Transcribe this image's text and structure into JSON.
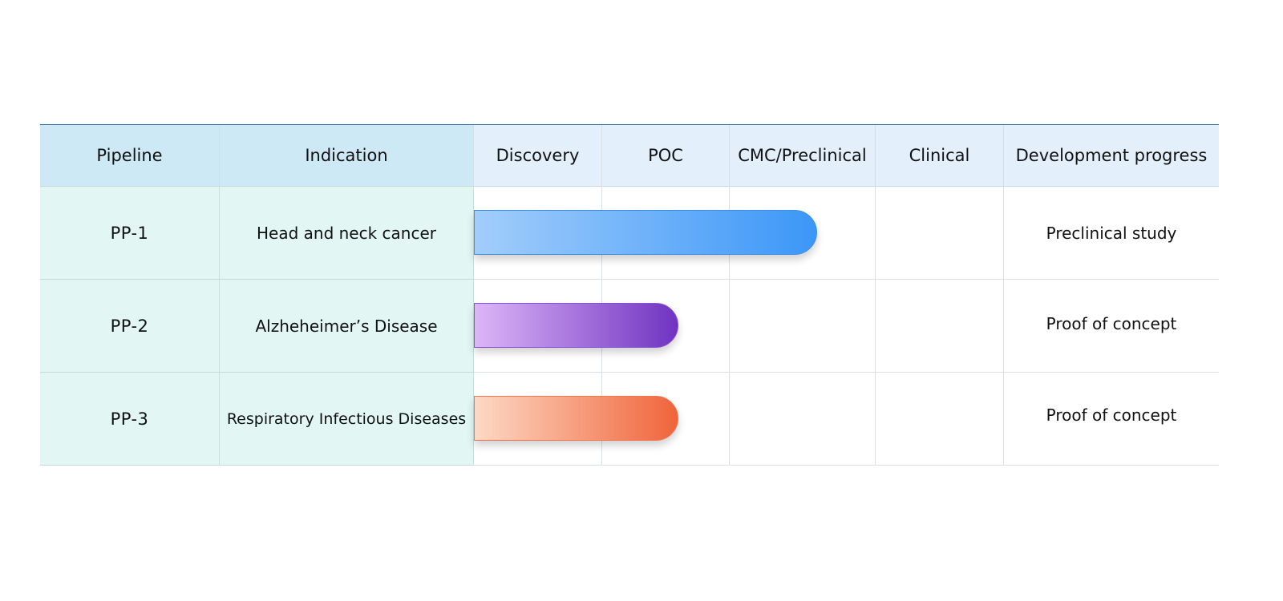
{
  "chart_data": {
    "type": "bar",
    "stages": [
      "Discovery",
      "POC",
      "CMC/Preclinical",
      "Clinical"
    ],
    "columns": [
      "Pipeline",
      "Indication",
      "Discovery",
      "POC",
      "CMC/Preclinical",
      "Clinical",
      "Development progress"
    ],
    "rows": [
      {
        "pipeline": "PP-1",
        "indication": "Head and neck cancer",
        "progress_stage_span": 2.6,
        "status": "Preclinical study",
        "color": "blue"
      },
      {
        "pipeline": "PP-2",
        "indication": "Alzheheimer’s Disease",
        "progress_stage_span": 1.6,
        "status": "Proof of concept",
        "color": "purple"
      },
      {
        "pipeline": "PP-3",
        "indication": "Respiratory Infectious Diseases",
        "progress_stage_span": 1.6,
        "status": "Proof of concept",
        "color": "orange"
      }
    ]
  },
  "colors": {
    "blue_start": "#a2cdfb",
    "blue_end": "#3b97f8",
    "purple_start": "#dcb6f7",
    "purple_end": "#7033c1",
    "orange_start": "#fdd9c5",
    "orange_end": "#f0643a"
  }
}
